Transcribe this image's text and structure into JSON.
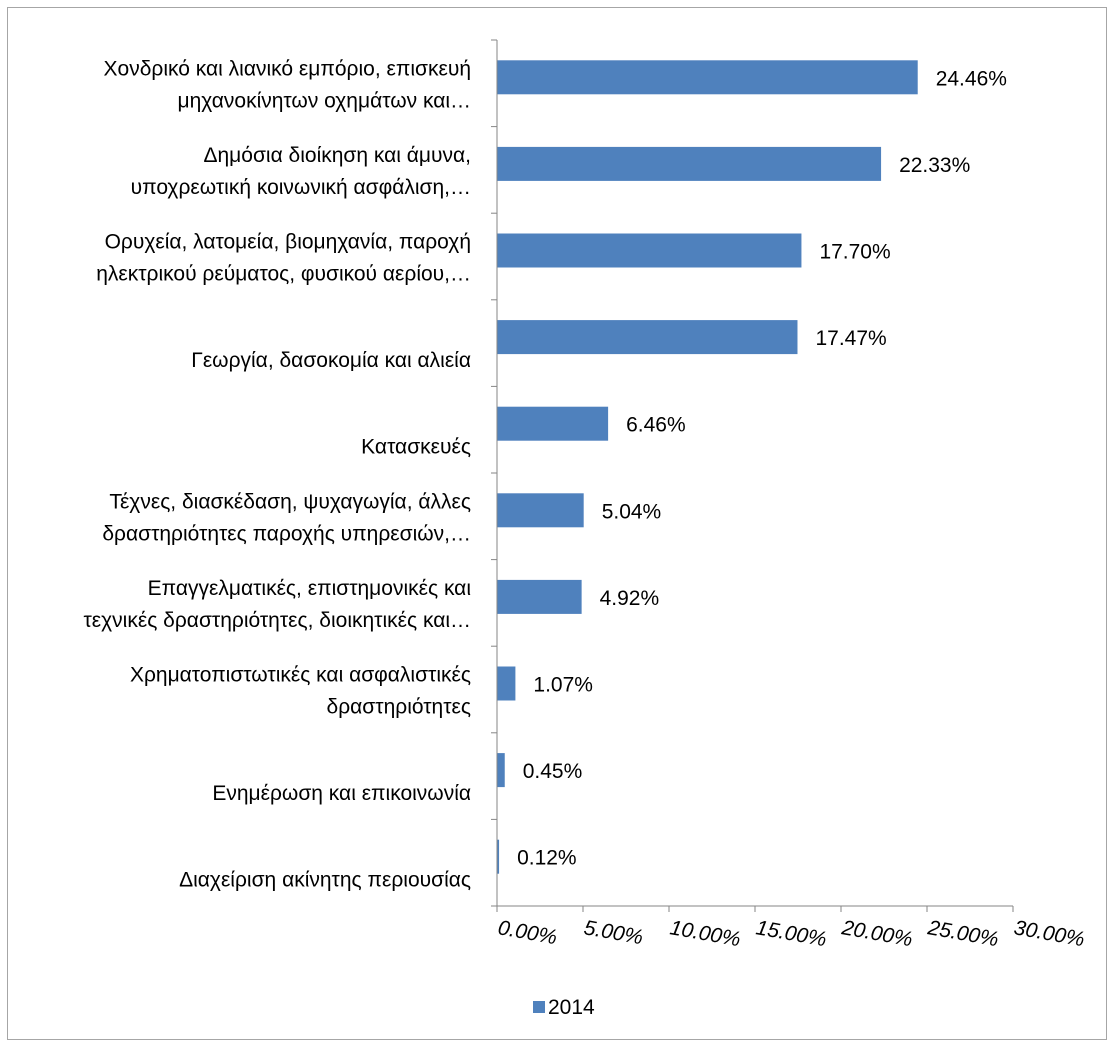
{
  "chart_data": {
    "type": "bar",
    "orientation": "horizontal",
    "title": "",
    "xlabel": "",
    "ylabel": "",
    "categories": [
      [
        "Χονδρικό και λιανικό εμπόριο, επισκευή",
        "μηχανοκίνητων οχημάτων και…"
      ],
      [
        "Δημόσια διοίκηση και άμυνα,",
        "υποχρεωτική κοινωνική ασφάλιση,…"
      ],
      [
        "Ορυχεία, λατομεία, βιομηχανία, παροχή",
        "ηλεκτρικού ρεύματος, φυσικού αερίου,…"
      ],
      [
        "Γεωργία, δασοκομία και αλιεία"
      ],
      [
        "Κατασκευές"
      ],
      [
        "Τέχνες, διασκέδαση, ψυχαγωγία, άλλες",
        "δραστηριότητες παροχής υπηρεσιών,…"
      ],
      [
        "Επαγγελματικές, επιστημονικές και",
        "τεχνικές δραστηριότητες, διοικητικές και…"
      ],
      [
        "Χρηματοπιστωτικές και ασφαλιστικές",
        "δραστηριότητες"
      ],
      [
        "Ενημέρωση και επικοινωνία"
      ],
      [
        "Διαχείριση ακίνητης περιουσίας"
      ]
    ],
    "series": [
      {
        "name": "2014",
        "color": "#4f81bd",
        "values": [
          24.46,
          22.33,
          17.7,
          17.47,
          6.46,
          5.04,
          4.92,
          1.07,
          0.45,
          0.12
        ],
        "labels": [
          "24.46%",
          "22.33%",
          "17.70%",
          "17.47%",
          "6.46%",
          "5.04%",
          "4.92%",
          "1.07%",
          "0.45%",
          "0.12%"
        ]
      }
    ],
    "xlim": [
      0,
      30
    ],
    "x_ticks": [
      0,
      5,
      10,
      15,
      20,
      25,
      30
    ],
    "x_tick_labels": [
      "0.00%",
      "5.00%",
      "10.00%",
      "15.00%",
      "20.00%",
      "25.00%",
      "30.00%"
    ],
    "grid": false,
    "legend": {
      "position": "bottom",
      "entries": [
        "2014"
      ]
    }
  }
}
